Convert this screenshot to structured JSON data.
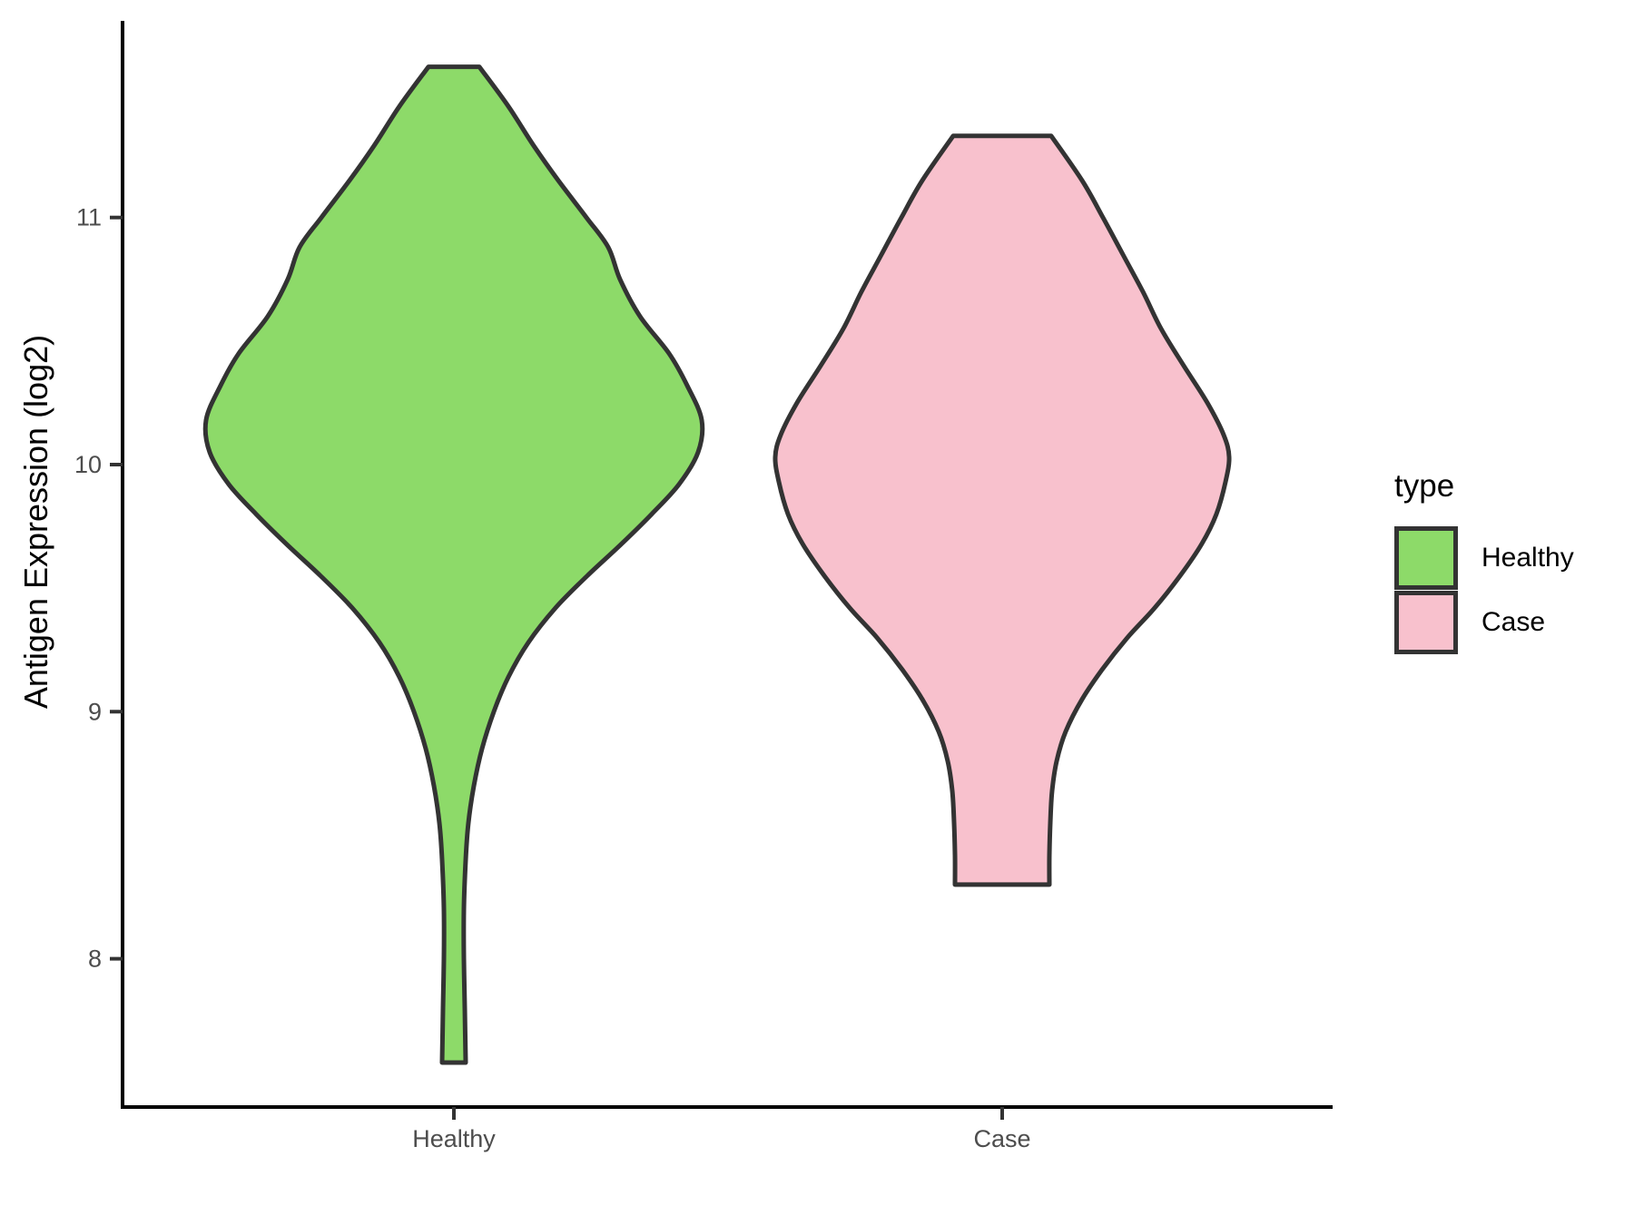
{
  "figure": {
    "background": "#FFFFFF",
    "y_axis_title": "Antigen Expression (log2)",
    "legend": {
      "title": "type",
      "items": [
        {
          "label": "Healthy",
          "color": "#8DDA69"
        },
        {
          "label": "Case",
          "color": "#F8C1CD"
        }
      ]
    }
  },
  "colors": {
    "outline": "#333333",
    "axis": "#000000",
    "tick": "#333333",
    "tick_text": "#4D4D4D"
  },
  "chart_data": {
    "type": "violin",
    "title": "",
    "xlabel": "",
    "ylabel": "Antigen Expression (log2)",
    "categories": [
      "Healthy",
      "Case"
    ],
    "yticks": [
      8,
      9,
      10,
      11
    ],
    "ylim": [
      7.4,
      11.8
    ],
    "grid": false,
    "legend_position": "right",
    "legend_title": "type",
    "series": [
      {
        "name": "Healthy",
        "fill": "#8DDA69",
        "min_value": 7.58,
        "max_value": 11.61,
        "peak_density_value": 10.18,
        "profile": [
          [
            11.61,
            28
          ],
          [
            11.45,
            60
          ],
          [
            11.29,
            88
          ],
          [
            11.15,
            115
          ],
          [
            11.0,
            146
          ],
          [
            10.88,
            170
          ],
          [
            10.75,
            183
          ],
          [
            10.6,
            205
          ],
          [
            10.45,
            237
          ],
          [
            10.32,
            257
          ],
          [
            10.18,
            273
          ],
          [
            10.05,
            269
          ],
          [
            9.92,
            248
          ],
          [
            9.8,
            218
          ],
          [
            9.68,
            185
          ],
          [
            9.55,
            147
          ],
          [
            9.42,
            112
          ],
          [
            9.28,
            82
          ],
          [
            9.14,
            60
          ],
          [
            9.0,
            44
          ],
          [
            8.85,
            31
          ],
          [
            8.7,
            22
          ],
          [
            8.55,
            16
          ],
          [
            8.4,
            13
          ],
          [
            8.2,
            11
          ],
          [
            8.0,
            11
          ],
          [
            7.8,
            12
          ],
          [
            7.58,
            13
          ]
        ]
      },
      {
        "name": "Case",
        "fill": "#F8C1CD",
        "min_value": 8.3,
        "max_value": 11.33,
        "peak_density_value": 10.03,
        "profile": [
          [
            11.33,
            54
          ],
          [
            11.15,
            88
          ],
          [
            11.0,
            111
          ],
          [
            10.85,
            133
          ],
          [
            10.7,
            155
          ],
          [
            10.55,
            175
          ],
          [
            10.4,
            200
          ],
          [
            10.25,
            226
          ],
          [
            10.12,
            244
          ],
          [
            10.03,
            250
          ],
          [
            9.93,
            246
          ],
          [
            9.8,
            236
          ],
          [
            9.68,
            220
          ],
          [
            9.55,
            196
          ],
          [
            9.42,
            168
          ],
          [
            9.3,
            138
          ],
          [
            9.17,
            110
          ],
          [
            9.05,
            88
          ],
          [
            8.92,
            70
          ],
          [
            8.8,
            60
          ],
          [
            8.68,
            55
          ],
          [
            8.55,
            53
          ],
          [
            8.42,
            52
          ],
          [
            8.3,
            52
          ]
        ]
      }
    ]
  }
}
